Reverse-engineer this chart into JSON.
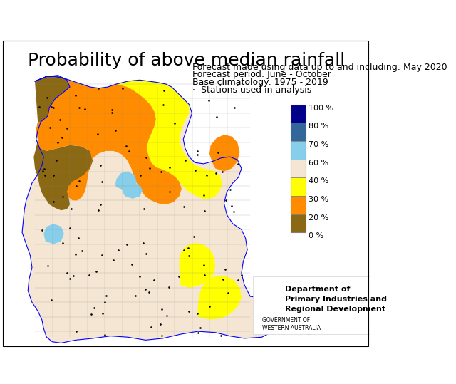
{
  "title": "Probability of above median rainfall",
  "subtitle_lines": [
    "Forecast made using data up to and including: May 2020",
    "Forecast period: June - October",
    "Base climatology: 1975 - 2019",
    "·  Stations used in analysis"
  ],
  "colorbar_labels": [
    "100 %",
    "80 %",
    "70 %",
    "60 %",
    "40 %",
    "30 %",
    "20 %",
    "0 %"
  ],
  "colorbar_colors": [
    "#00008B",
    "#336699",
    "#87CEEB",
    "#F5E6D3",
    "#FFFF00",
    "#FF8C00",
    "#8B6914"
  ],
  "colorbar_boundaries": [
    0,
    20,
    30,
    40,
    60,
    70,
    80,
    100
  ],
  "background_color": "#FFFFFF",
  "title_fontsize": 18,
  "subtitle_fontsize": 9,
  "dept_name": "Department of\nPrimary Industries and\nRegional Development",
  "govt_label": "GOVERNMENT OF\nWESTERN AUSTRALIA",
  "figsize": [
    6.4,
    5.39
  ],
  "dpi": 100
}
